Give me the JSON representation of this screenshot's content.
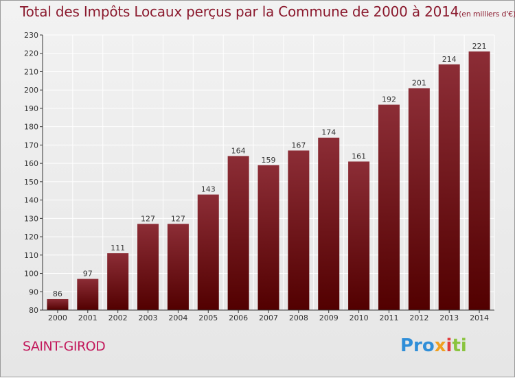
{
  "header": {
    "title": "Total des Impôts Locaux perçus par la Commune de 2000 à 2014",
    "unit": "(en milliers d'€)"
  },
  "commune_name": "SAINT-GIROD",
  "brand": {
    "p1": "Pro",
    "p2": "x",
    "p3": "i",
    "p4": "ti"
  },
  "colors": {
    "bar_top": "#8c2d36",
    "bar_bottom": "#520000",
    "grid": "#ffffff",
    "axis": "#333333",
    "title": "#8b1a2e"
  },
  "chart_data": {
    "type": "bar",
    "title": "Total des Impôts Locaux perçus par la Commune de 2000 à 2014",
    "ylabel": "en milliers d'€",
    "xlabel": "",
    "categories": [
      "2000",
      "2001",
      "2002",
      "2003",
      "2004",
      "2005",
      "2006",
      "2007",
      "2008",
      "2009",
      "2010",
      "2011",
      "2012",
      "2013",
      "2014"
    ],
    "values": [
      86,
      97,
      111,
      127,
      127,
      143,
      164,
      159,
      167,
      174,
      161,
      192,
      201,
      214,
      221
    ],
    "ylim": [
      80,
      230
    ],
    "yticks": [
      80,
      90,
      100,
      110,
      120,
      130,
      140,
      150,
      160,
      170,
      180,
      190,
      200,
      210,
      220,
      230
    ],
    "grid": true
  }
}
